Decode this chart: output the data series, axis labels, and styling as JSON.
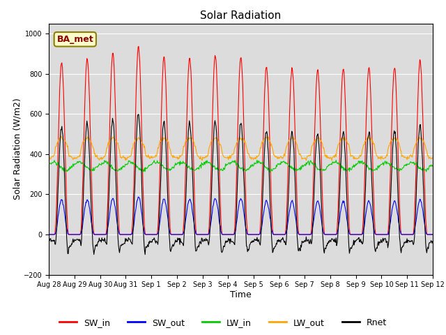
{
  "title": "Solar Radiation",
  "xlabel": "Time",
  "ylabel": "Solar Radiation (W/m2)",
  "ylim": [
    -200,
    1050
  ],
  "yticks": [
    -200,
    0,
    200,
    400,
    600,
    800,
    1000
  ],
  "background_color": "#dcdcdc",
  "series_colors": {
    "SW_in": "#ff0000",
    "SW_out": "#0000ff",
    "LW_in": "#00cc00",
    "LW_out": "#ffa500",
    "Rnet": "#000000"
  },
  "x_tick_labels": [
    "Aug 28",
    "Aug 29",
    "Aug 30",
    "Aug 31",
    "Sep 1",
    "Sep 2",
    "Sep 3",
    "Sep 4",
    "Sep 5",
    "Sep 6",
    "Sep 7",
    "Sep 8",
    "Sep 9",
    "Sep 10",
    "Sep 11",
    "Sep 12"
  ],
  "n_days": 15,
  "annotation_text": "BA_met",
  "annotation_box_color": "#ffffcc",
  "annotation_box_edge": "#8B8000",
  "title_fontsize": 11,
  "label_fontsize": 9,
  "tick_fontsize": 7,
  "legend_fontsize": 9
}
